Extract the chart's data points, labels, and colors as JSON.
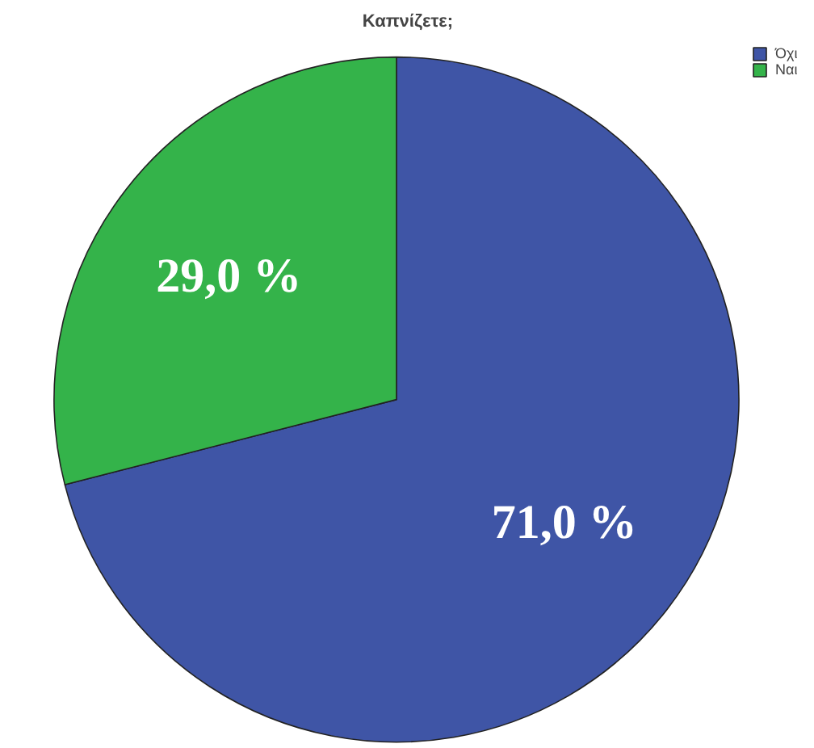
{
  "chart_data": {
    "type": "pie",
    "title": "Καπνίζετε;",
    "categories": [
      "Όχι",
      "Ναι"
    ],
    "values": [
      71.0,
      29.0
    ],
    "colors": [
      "#3f55a6",
      "#34b34a"
    ],
    "value_labels": [
      "71,0 %",
      "29,0 %"
    ],
    "legend": "top right"
  }
}
